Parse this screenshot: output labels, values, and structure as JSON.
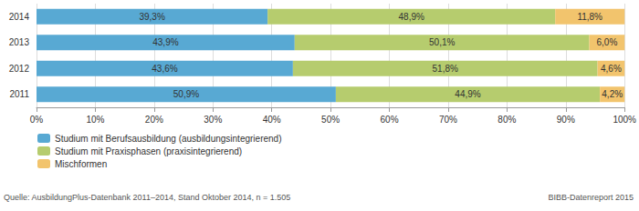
{
  "chart_data": {
    "type": "bar",
    "orientation": "horizontal",
    "stacked": true,
    "data_labels": true,
    "grid": true,
    "legend": "bottom-left",
    "categories": [
      "2011",
      "2012",
      "2013",
      "2014"
    ],
    "series": [
      {
        "name": "Studium mit Berufsausbildung (ausbildungsintegrierend)",
        "color": "#58a9d3",
        "values": [
          50.9,
          43.6,
          43.9,
          39.3
        ],
        "value_labels": [
          "50,9%",
          "43,6%",
          "43,9%",
          "39,3%"
        ]
      },
      {
        "name": "Studium mit Praxisphasen (praxisintegrierend)",
        "color": "#b6cc6e",
        "values": [
          44.9,
          51.8,
          50.1,
          48.9
        ],
        "value_labels": [
          "44,9%",
          "51,8%",
          "50,1%",
          "48,9%"
        ]
      },
      {
        "name": "Mischformen",
        "color": "#f2c46d",
        "values": [
          4.2,
          4.6,
          6.0,
          11.8
        ],
        "value_labels": [
          "4,2%",
          "4,6%",
          "6,0%",
          "11,8%"
        ]
      }
    ],
    "xlim": [
      0,
      100
    ],
    "xticks": [
      {
        "value": 0,
        "label": "0%"
      },
      {
        "value": 10,
        "label": "10%"
      },
      {
        "value": 20,
        "label": "20%"
      },
      {
        "value": 30,
        "label": "30%"
      },
      {
        "value": 40,
        "label": "40%"
      },
      {
        "value": 50,
        "label": "50%"
      },
      {
        "value": 60,
        "label": "60%"
      },
      {
        "value": 70,
        "label": "70%"
      },
      {
        "value": 80,
        "label": "80%"
      },
      {
        "value": 90,
        "label": "90%"
      },
      {
        "value": 100,
        "label": "100%"
      }
    ],
    "annotations": [
      "Quelle: AusbildungPlus-Datenbank 2011–2014, Stand Oktober 2014, n = 1.505",
      "BIBB-Datenreport 2015"
    ]
  }
}
